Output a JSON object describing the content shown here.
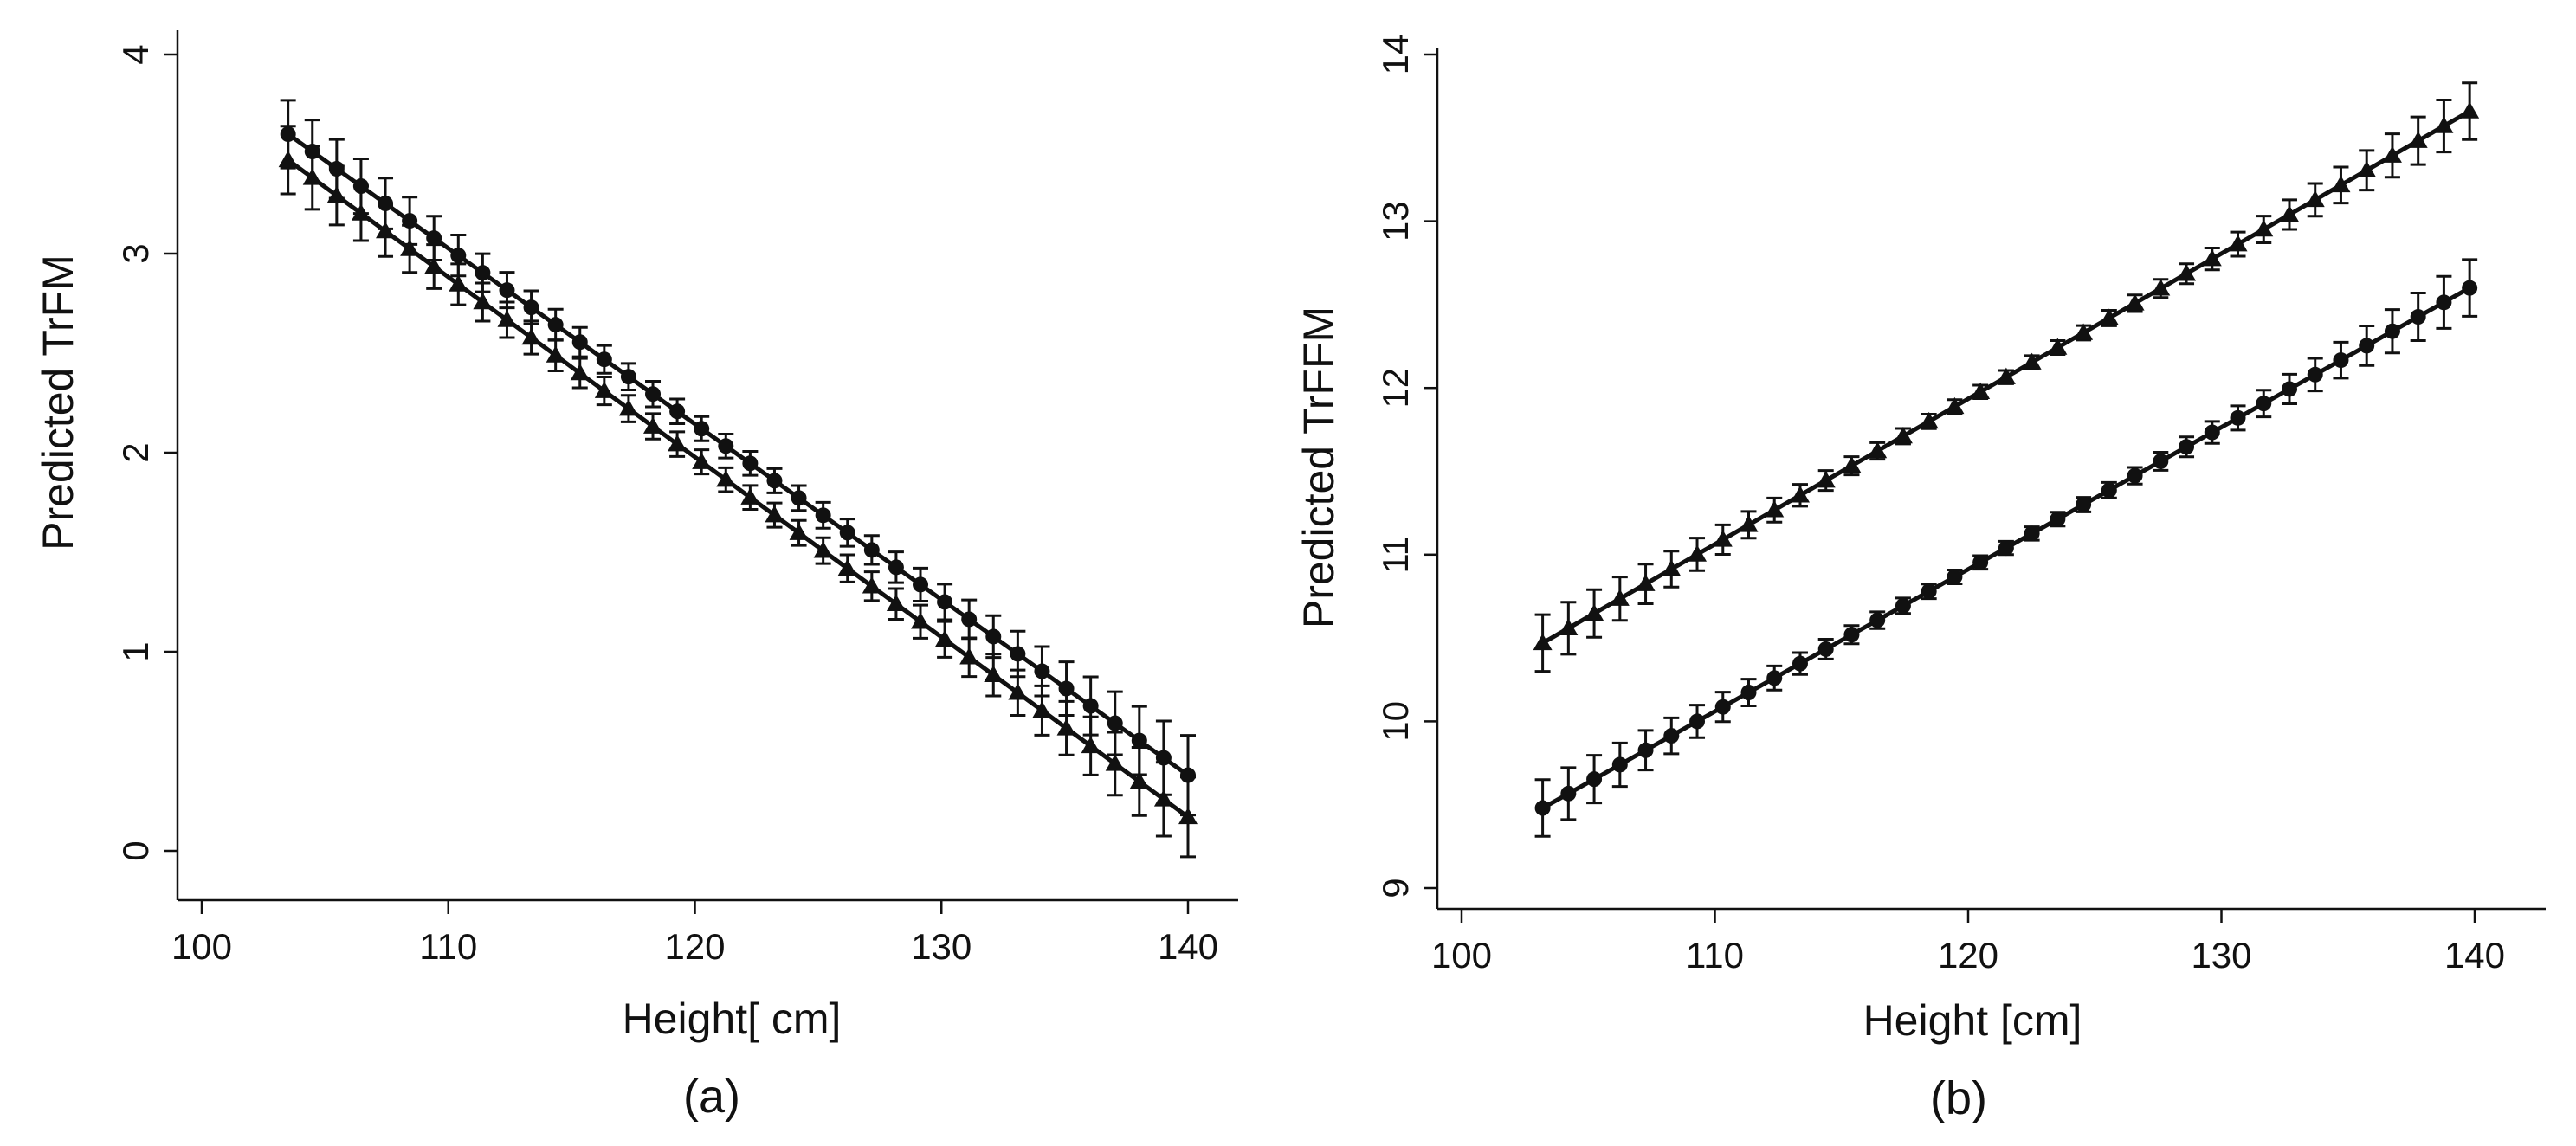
{
  "chart_data": [
    {
      "panel": "(a)",
      "type": "line",
      "xlabel": "Height[ cm]",
      "ylabel": "Predicted TrFM",
      "xlim": [
        99,
        143
      ],
      "ylim": [
        -0.25,
        4.1
      ],
      "xticks": [
        100,
        110,
        120,
        130,
        140
      ],
      "yticks": [
        0,
        1,
        2,
        3,
        4
      ],
      "grid": false,
      "series": [
        {
          "name": "circles",
          "marker": "circle",
          "x_start": 103.5,
          "x_end": 140,
          "n_points": 38,
          "y_start": 3.6,
          "y_end": 0.38,
          "ci_start": 0.17,
          "ci_end": 0.2,
          "ci_mid": 0.06
        },
        {
          "name": "triangles",
          "marker": "triangle",
          "x_start": 103.5,
          "x_end": 140,
          "n_points": 38,
          "y_start": 3.47,
          "y_end": 0.17,
          "ci_start": 0.17,
          "ci_end": 0.2,
          "ci_mid": 0.06
        }
      ]
    },
    {
      "panel": "(b)",
      "type": "line",
      "xlabel": "Height [cm]",
      "ylabel": "Predicted TrFFM",
      "xlim": [
        99,
        143
      ],
      "ylim": [
        8.95,
        14.1
      ],
      "xticks": [
        100,
        110,
        120,
        130,
        140
      ],
      "yticks": [
        9,
        10,
        11,
        12,
        13,
        14
      ],
      "grid": false,
      "series": [
        {
          "name": "triangles",
          "marker": "triangle",
          "x_start": 103.2,
          "x_end": 139.8,
          "n_points": 37,
          "y_start": 10.47,
          "y_end": 13.66,
          "ci_start": 0.17,
          "ci_end": 0.17,
          "ci_mid": 0.04
        },
        {
          "name": "circles",
          "marker": "circle",
          "x_start": 103.2,
          "x_end": 139.8,
          "n_points": 37,
          "y_start": 9.48,
          "y_end": 12.6,
          "ci_start": 0.17,
          "ci_end": 0.17,
          "ci_mid": 0.04
        }
      ]
    }
  ]
}
